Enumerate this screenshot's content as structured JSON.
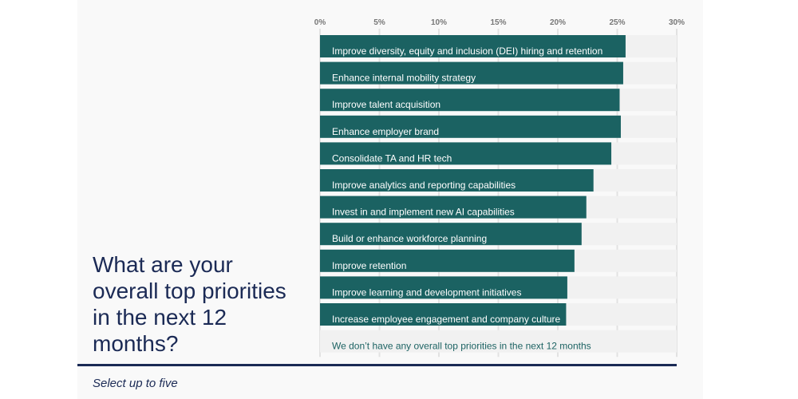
{
  "title": "What are your overall top priorities in the next 12 months?",
  "subtitle": "Select up to five",
  "chart_data": {
    "type": "bar",
    "orientation": "horizontal",
    "xlim": [
      0,
      30
    ],
    "tick_labels": [
      "0%",
      "5%",
      "10%",
      "15%",
      "20%",
      "25%",
      "30%"
    ],
    "ticks": [
      0,
      5,
      10,
      15,
      20,
      25,
      30
    ],
    "bar_color": "#1b6262",
    "track_color": "#f1f1f1",
    "categories": [
      "Improve diversity, equity and inclusion (DEI) hiring and retention",
      "Enhance internal mobility strategy",
      "Improve talent acquisition",
      "Enhance employer brand",
      "Consolidate TA and HR tech",
      "Improve analytics and reporting capabilities",
      "Invest in and implement new AI capabilities",
      "Build or enhance workforce planning",
      "Improve retention",
      "Improve learning and development initiatives",
      "Increase employee engagement and company culture",
      "We don’t have any overall top priorities in the next 12 months"
    ],
    "values": [
      25.7,
      25.5,
      25.2,
      25.3,
      24.5,
      23.0,
      22.4,
      22.0,
      21.4,
      20.8,
      20.7,
      0
    ]
  }
}
